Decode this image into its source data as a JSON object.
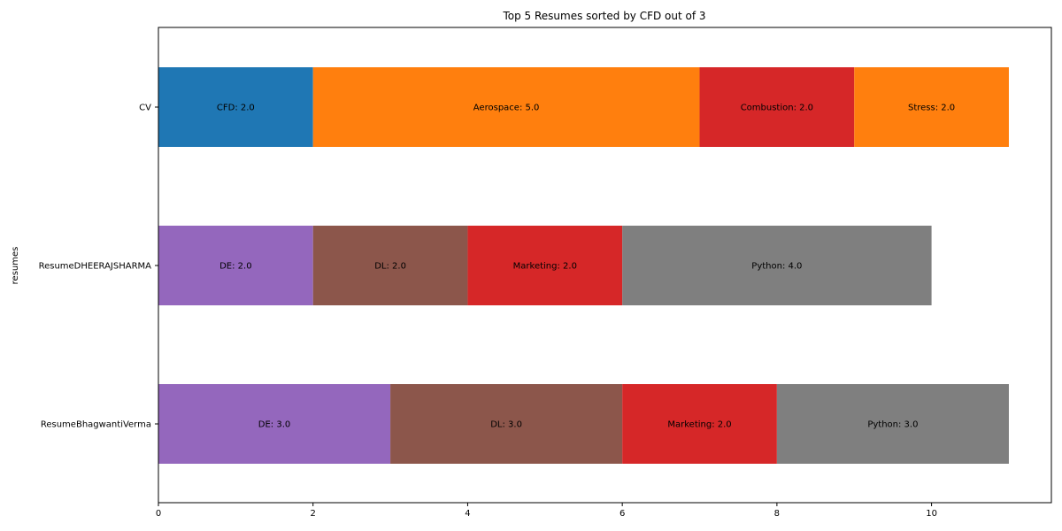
{
  "chart_data": {
    "type": "bar",
    "orientation": "horizontal",
    "stacked": true,
    "title": "Top 5 Resumes sorted by CFD out of 3",
    "xlabel": "",
    "ylabel": "resumes",
    "xlim": [
      0,
      11.55
    ],
    "xticks": [
      0,
      2,
      4,
      6,
      8,
      10
    ],
    "grid": false,
    "legend": "none",
    "rows": [
      {
        "name": "CV",
        "segments": [
          {
            "label": "CFD",
            "value": 2.0,
            "text": "CFD: 2.0",
            "color": "#1f77b4"
          },
          {
            "label": "Aerospace",
            "value": 5.0,
            "text": "Aerospace: 5.0",
            "color": "#ff7f0e"
          },
          {
            "label": "Combustion",
            "value": 2.0,
            "text": "Combustion: 2.0",
            "color": "#d62728"
          },
          {
            "label": "Stress",
            "value": 2.0,
            "text": "Stress: 2.0",
            "color": "#ff7f0e"
          }
        ]
      },
      {
        "name": "ResumeDHEERAJSHARMA",
        "segments": [
          {
            "label": "DE",
            "value": 2.0,
            "text": "DE: 2.0",
            "color": "#9467bd"
          },
          {
            "label": "DL",
            "value": 2.0,
            "text": "DL: 2.0",
            "color": "#8c564b"
          },
          {
            "label": "Marketing",
            "value": 2.0,
            "text": "Marketing: 2.0",
            "color": "#d62728"
          },
          {
            "label": "Python",
            "value": 4.0,
            "text": "Python: 4.0",
            "color": "#7f7f7f"
          }
        ]
      },
      {
        "name": "ResumeBhagwantiVerma",
        "segments": [
          {
            "label": "DE",
            "value": 3.0,
            "text": "DE: 3.0",
            "color": "#9467bd"
          },
          {
            "label": "DL",
            "value": 3.0,
            "text": "DL: 3.0",
            "color": "#8c564b"
          },
          {
            "label": "Marketing",
            "value": 2.0,
            "text": "Marketing: 2.0",
            "color": "#d62728"
          },
          {
            "label": "Python",
            "value": 3.0,
            "text": "Python: 3.0",
            "color": "#7f7f7f"
          }
        ]
      }
    ]
  }
}
